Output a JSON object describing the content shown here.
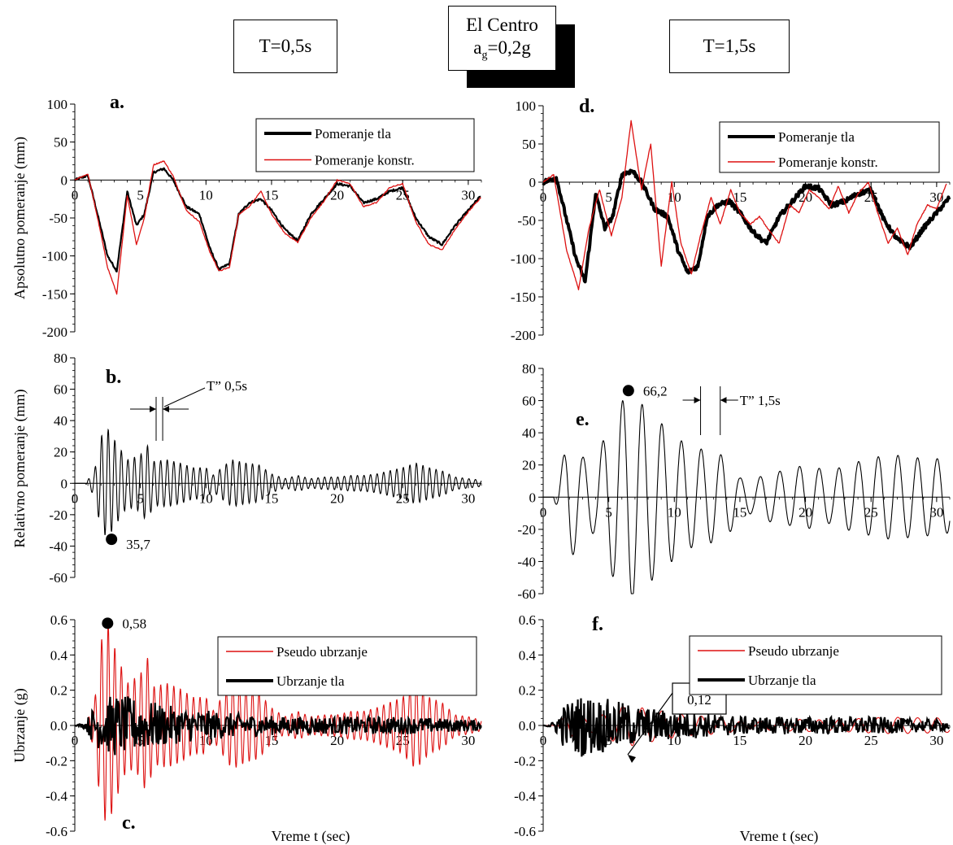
{
  "header": {
    "left_box": "T=0,5s",
    "center_line1": "El Centro",
    "center_line2_prefix": "a",
    "center_line2_sub": "g",
    "center_line2_suffix": "=0,2g",
    "right_box": "T=1,5s"
  },
  "colors": {
    "ground": "#000000",
    "structure": "#dd1111",
    "axis": "#000000"
  },
  "chart_data": [
    {
      "id": "a",
      "letter": "a.",
      "type": "line",
      "ylabel": "Apsolutno pomeranje (mm)",
      "xlabel": "",
      "xlim": [
        0,
        31
      ],
      "ylim": [
        -200,
        100
      ],
      "xticks": [
        0,
        5,
        10,
        15,
        20,
        25,
        30
      ],
      "xtick_labels": [
        "0",
        "5",
        "10",
        "15",
        "20",
        "25",
        "30"
      ],
      "yticks": [
        -200,
        -150,
        -100,
        -50,
        0,
        50,
        100
      ],
      "ytick_labels": [
        "-200",
        "-150",
        "-100",
        "-50",
        "0",
        "50",
        "100"
      ],
      "legend": [
        "Pomeranje tla",
        "Pomeranje konstr."
      ],
      "series": [
        {
          "name": "Pomeranje tla",
          "color": "#000000",
          "x": [
            0,
            1,
            1.8,
            2.5,
            3.2,
            4,
            4.7,
            5.3,
            6,
            6.8,
            7.5,
            8.5,
            9.5,
            10.3,
            11,
            11.8,
            12.5,
            13.3,
            14.2,
            15,
            16,
            17,
            18,
            19,
            20,
            21,
            22,
            23,
            24,
            25,
            26,
            27,
            28,
            29,
            30,
            31
          ],
          "y": [
            0,
            6,
            -50,
            -100,
            -120,
            -15,
            -60,
            -45,
            10,
            15,
            0,
            -35,
            -45,
            -90,
            -118,
            -110,
            -45,
            -30,
            -25,
            -40,
            -65,
            -80,
            -45,
            -25,
            -5,
            -8,
            -30,
            -25,
            -15,
            -10,
            -50,
            -75,
            -85,
            -60,
            -40,
            -20
          ]
        },
        {
          "name": "Pomeranje konstr.",
          "color": "#dd1111",
          "x": [
            0,
            1,
            1.8,
            2.5,
            3.2,
            4,
            4.7,
            5.3,
            6,
            6.8,
            7.5,
            8.5,
            9.5,
            10.3,
            11,
            11.8,
            12.5,
            13.3,
            14.2,
            15,
            16,
            17,
            18,
            19,
            20,
            21,
            22,
            23,
            24,
            25,
            26,
            27,
            28,
            29,
            30,
            31
          ],
          "y": [
            0,
            8,
            -55,
            -115,
            -150,
            -20,
            -85,
            -50,
            20,
            25,
            5,
            -40,
            -55,
            -95,
            -120,
            -115,
            -45,
            -35,
            -15,
            -45,
            -70,
            -82,
            -50,
            -28,
            0,
            -5,
            -35,
            -30,
            -10,
            -5,
            -55,
            -85,
            -92,
            -65,
            -42,
            -22
          ]
        }
      ],
      "markers": []
    },
    {
      "id": "b",
      "letter": "b.",
      "type": "line",
      "ylabel": "Relativno pomeranje (mm)",
      "xlabel": "",
      "xlim": [
        0,
        31
      ],
      "ylim": [
        -60,
        80
      ],
      "xticks": [
        0,
        5,
        10,
        15,
        20,
        25,
        30
      ],
      "xtick_labels": [
        "0",
        "5",
        "10",
        "15",
        "20",
        "25",
        "30"
      ],
      "yticks": [
        -60,
        -40,
        -20,
        0,
        20,
        40,
        60,
        80
      ],
      "ytick_labels": [
        "-60",
        "-40",
        "-20",
        "0",
        "20",
        "40",
        "60",
        "80"
      ],
      "legend": [],
      "osc": {
        "period": 0.5,
        "x0": 0.8,
        "env_x": [
          0,
          0.8,
          1.5,
          2,
          2.5,
          3,
          4,
          5,
          5.5,
          6,
          7,
          8,
          9,
          10,
          10.5,
          11.5,
          12,
          13,
          14,
          15,
          16,
          17,
          18,
          19,
          20,
          21,
          22,
          23,
          24,
          25,
          26,
          27,
          28,
          29,
          30,
          31
        ],
        "env_y": [
          0,
          0,
          8,
          30,
          35,
          28,
          15,
          18,
          25,
          14,
          15,
          13,
          10,
          10,
          5,
          12,
          15,
          13,
          12,
          6,
          3,
          5,
          3,
          4,
          4,
          5,
          5,
          6,
          8,
          10,
          13,
          10,
          8,
          4,
          3,
          2
        ]
      },
      "series": [
        {
          "name": "",
          "color": "#000000"
        }
      ],
      "markers": [
        {
          "x": 2.8,
          "y": -35.7,
          "label": "35,7"
        }
      ],
      "period_label": "T” 0,5s"
    },
    {
      "id": "c",
      "letter": "c.",
      "type": "line",
      "ylabel": "Ubrzanje (g)",
      "xlabel": "Vreme t (sec)",
      "xlim": [
        0,
        31
      ],
      "ylim": [
        -0.6,
        0.6
      ],
      "xticks": [
        0,
        5,
        10,
        15,
        20,
        25,
        30
      ],
      "xtick_labels": [
        "0",
        "5",
        "10",
        "15",
        "20",
        "25",
        "30"
      ],
      "yticks": [
        -0.6,
        -0.4,
        -0.2,
        0,
        0.2,
        0.4,
        0.6
      ],
      "ytick_labels": [
        "-0.6",
        "-0.4",
        "-0.2",
        "0.0",
        "0.2",
        "0.4",
        "0.6"
      ],
      "legend": [
        "Pseudo ubrzanje",
        "Ubrzanje tla"
      ],
      "osc": {
        "period": 0.5,
        "x0": 0.8,
        "env_x": [
          0,
          0.8,
          1.5,
          2,
          2.5,
          3,
          4,
          5,
          5.5,
          6,
          7,
          8,
          9,
          10,
          10.5,
          11.5,
          12,
          13,
          14,
          15,
          16,
          17,
          18,
          19,
          20,
          21,
          22,
          23,
          24,
          25,
          26,
          27,
          28,
          29,
          30,
          31
        ],
        "env_y": [
          0,
          0,
          0.13,
          0.48,
          0.58,
          0.45,
          0.24,
          0.29,
          0.4,
          0.22,
          0.24,
          0.21,
          0.16,
          0.16,
          0.08,
          0.19,
          0.25,
          0.21,
          0.19,
          0.1,
          0.05,
          0.08,
          0.05,
          0.06,
          0.06,
          0.08,
          0.08,
          0.1,
          0.13,
          0.16,
          0.25,
          0.16,
          0.13,
          0.06,
          0.05,
          0.03
        ]
      },
      "noise": {
        "env_x": [
          0,
          0.8,
          1.5,
          3,
          5,
          8,
          12,
          16,
          20,
          25,
          28,
          31
        ],
        "env_y": [
          0,
          0.02,
          0.12,
          0.18,
          0.15,
          0.1,
          0.07,
          0.05,
          0.05,
          0.05,
          0.04,
          0.03
        ]
      },
      "series": [
        {
          "name": "Pseudo ubrzanje",
          "color": "#dd1111"
        },
        {
          "name": "Ubrzanje tla",
          "color": "#000000"
        }
      ],
      "markers": [
        {
          "x": 2.5,
          "y": 0.58,
          "label": "0,58"
        }
      ]
    },
    {
      "id": "d",
      "letter": "d.",
      "type": "line",
      "ylabel": "",
      "xlabel": "",
      "xlim": [
        0,
        31
      ],
      "ylim": [
        -200,
        100
      ],
      "xticks": [
        0,
        5,
        10,
        15,
        20,
        25,
        30
      ],
      "xtick_labels": [
        "0",
        "5",
        "10",
        "15",
        "20",
        "25",
        "30"
      ],
      "yticks": [
        -200,
        -150,
        -100,
        -50,
        0,
        50,
        100
      ],
      "ytick_labels": [
        "-200",
        "-150",
        "-100",
        "-50",
        "0",
        "50",
        "100"
      ],
      "legend": [
        "Pomeranje tla",
        "Pomeranje konstr."
      ],
      "series": [
        {
          "name": "Pomeranje tla",
          "color": "#000000",
          "x": [
            0,
            1,
            1.8,
            2.5,
            3.2,
            4,
            4.7,
            5.3,
            6,
            6.8,
            7.5,
            8.5,
            9.5,
            10.3,
            11,
            11.8,
            12.5,
            13.3,
            14.2,
            15,
            16,
            17,
            18,
            19,
            20,
            21,
            22,
            23,
            24,
            25,
            26,
            27,
            28,
            29,
            30,
            31
          ],
          "y": [
            0,
            6,
            -50,
            -100,
            -130,
            -15,
            -60,
            -45,
            10,
            15,
            0,
            -35,
            -45,
            -90,
            -118,
            -110,
            -45,
            -30,
            -25,
            -40,
            -65,
            -80,
            -45,
            -25,
            -5,
            -8,
            -30,
            -25,
            -15,
            -10,
            -50,
            -75,
            -85,
            -60,
            -40,
            -20
          ]
        },
        {
          "name": "Pomeranje konstr.",
          "color": "#dd1111",
          "x": [
            0,
            0.8,
            1.8,
            2.7,
            3.5,
            4.3,
            5.2,
            6.0,
            6.7,
            7.5,
            8.2,
            9.0,
            9.8,
            10.5,
            11.3,
            12.0,
            12.8,
            13.5,
            14.3,
            15.0,
            15.8,
            16.5,
            17.3,
            18.0,
            18.8,
            19.5,
            20.3,
            21.0,
            21.8,
            22.5,
            23.3,
            24.0,
            24.8,
            25.5,
            26.3,
            27.0,
            27.8,
            28.5,
            29.3,
            30.0,
            30.8
          ],
          "y": [
            0,
            10,
            -90,
            -140,
            -60,
            -10,
            -70,
            -20,
            80,
            -10,
            50,
            -110,
            0,
            -80,
            -120,
            -70,
            -20,
            -55,
            -10,
            -40,
            -55,
            -45,
            -65,
            -80,
            -30,
            -40,
            -10,
            -20,
            -35,
            -5,
            -40,
            -15,
            0,
            -40,
            -80,
            -60,
            -95,
            -55,
            -30,
            -35,
            0
          ]
        }
      ],
      "markers": []
    },
    {
      "id": "e",
      "letter": "e.",
      "type": "line",
      "ylabel": "",
      "xlabel": "",
      "xlim": [
        0,
        31
      ],
      "ylim": [
        -60,
        80
      ],
      "xticks": [
        0,
        5,
        10,
        15,
        20,
        25,
        30
      ],
      "xtick_labels": [
        "0",
        "5",
        "10",
        "15",
        "20",
        "25",
        "30"
      ],
      "yticks": [
        -60,
        -40,
        -20,
        0,
        20,
        40,
        60,
        80
      ],
      "ytick_labels": [
        "-60",
        "-40",
        "-20",
        "0",
        "20",
        "40",
        "60",
        "80"
      ],
      "legend": [],
      "osc": {
        "period": 1.5,
        "x0": 0.8,
        "env_x": [
          0,
          0.8,
          2,
          3,
          4,
          5,
          6.5,
          7.5,
          8.5,
          9.5,
          11,
          12,
          13,
          14,
          15,
          16,
          17,
          18,
          19,
          20,
          21,
          22,
          23,
          24,
          25,
          26,
          27,
          28,
          29,
          30,
          31
        ],
        "env_y": [
          0,
          0,
          40,
          25,
          22,
          45,
          66.2,
          58,
          50,
          42,
          32,
          30,
          28,
          25,
          12,
          10,
          15,
          16,
          18,
          20,
          18,
          16,
          20,
          22,
          24,
          26,
          26,
          25,
          24,
          24,
          22
        ]
      },
      "series": [
        {
          "name": "",
          "color": "#000000"
        }
      ],
      "markers": [
        {
          "x": 6.5,
          "y": 66.2,
          "label": "66,2"
        }
      ],
      "period_label": "T” 1,5s"
    },
    {
      "id": "f",
      "letter": "f.",
      "type": "line",
      "ylabel": "",
      "xlabel": "Vreme t (sec)",
      "xlim": [
        0,
        31
      ],
      "ylim": [
        -0.6,
        0.6
      ],
      "xticks": [
        0,
        5,
        10,
        15,
        20,
        25,
        30
      ],
      "xtick_labels": [
        "0",
        "5",
        "10",
        "15",
        "20",
        "25",
        "30"
      ],
      "yticks": [
        -0.6,
        -0.4,
        -0.2,
        0,
        0.2,
        0.4,
        0.6
      ],
      "ytick_labels": [
        "-0.6",
        "-0.4",
        "-0.2",
        "0.0",
        "0.2",
        "0.4",
        "0.6"
      ],
      "legend": [
        "Pseudo ubrzanje",
        "Ubrzanje tla"
      ],
      "osc": {
        "period": 1.5,
        "x0": 0.8,
        "env_x": [
          0,
          0.8,
          2,
          3,
          4,
          5,
          6.5,
          7.5,
          8.5,
          9.5,
          11,
          12,
          13,
          14,
          15,
          16,
          17,
          18,
          19,
          20,
          21,
          22,
          23,
          24,
          25,
          26,
          27,
          28,
          29,
          30,
          31
        ],
        "env_y": [
          0,
          0,
          0.07,
          0.045,
          0.04,
          0.08,
          0.12,
          0.1,
          0.09,
          0.075,
          0.057,
          0.053,
          0.05,
          0.045,
          0.021,
          0.018,
          0.027,
          0.029,
          0.032,
          0.036,
          0.032,
          0.029,
          0.036,
          0.039,
          0.043,
          0.046,
          0.046,
          0.045,
          0.043,
          0.043,
          0.039
        ]
      },
      "noise": {
        "env_x": [
          0,
          0.8,
          1.5,
          3,
          5,
          8,
          12,
          16,
          20,
          25,
          28,
          31
        ],
        "env_y": [
          0,
          0.02,
          0.12,
          0.18,
          0.15,
          0.1,
          0.07,
          0.05,
          0.05,
          0.05,
          0.04,
          0.03
        ]
      },
      "series": [
        {
          "name": "Pseudo ubrzanje",
          "color": "#dd1111"
        },
        {
          "name": "Ubrzanje tla",
          "color": "#000000"
        }
      ],
      "markers": [
        {
          "x": 6.2,
          "y": -0.12,
          "label": "0,12"
        }
      ]
    }
  ]
}
